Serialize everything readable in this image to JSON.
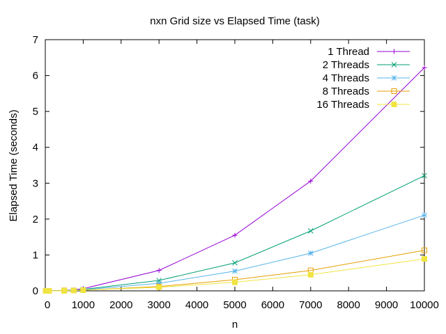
{
  "chart_data": {
    "type": "line",
    "title": "nxn Grid size vs Elapsed Time (task)",
    "xlabel": "n",
    "ylabel": "Elapsed Time (seconds)",
    "xlim": [
      0,
      10000
    ],
    "ylim": [
      0,
      7
    ],
    "xticks": [
      0,
      1000,
      2000,
      3000,
      4000,
      5000,
      6000,
      7000,
      8000,
      9000,
      10000
    ],
    "yticks": [
      0,
      1,
      2,
      3,
      4,
      5,
      6,
      7
    ],
    "legend_position": "top-right",
    "grid": false,
    "x": [
      10,
      100,
      500,
      750,
      1000,
      3000,
      5000,
      7000,
      10000
    ],
    "series": [
      {
        "name": "1 Thread",
        "color": "#9400d3",
        "marker": "plus",
        "values": [
          0.0,
          0.0,
          0.01,
          0.03,
          0.06,
          0.57,
          1.55,
          3.06,
          6.22
        ]
      },
      {
        "name": "2 Threads",
        "color": "#009e73",
        "marker": "cross",
        "values": [
          0.0,
          0.0,
          0.01,
          0.02,
          0.04,
          0.29,
          0.78,
          1.67,
          3.21
        ]
      },
      {
        "name": "4 Threads",
        "color": "#56b4e9",
        "marker": "star",
        "values": [
          0.0,
          0.0,
          0.01,
          0.02,
          0.03,
          0.21,
          0.55,
          1.05,
          2.11
        ]
      },
      {
        "name": "8 Threads",
        "color": "#e69f00",
        "marker": "open-square",
        "values": [
          0.0,
          0.0,
          0.01,
          0.01,
          0.02,
          0.12,
          0.31,
          0.57,
          1.13
        ]
      },
      {
        "name": "16 Threads",
        "color": "#f0e442",
        "marker": "filled-square",
        "values": [
          0.0,
          0.0,
          0.0,
          0.01,
          0.02,
          0.1,
          0.24,
          0.45,
          0.89
        ]
      }
    ]
  }
}
